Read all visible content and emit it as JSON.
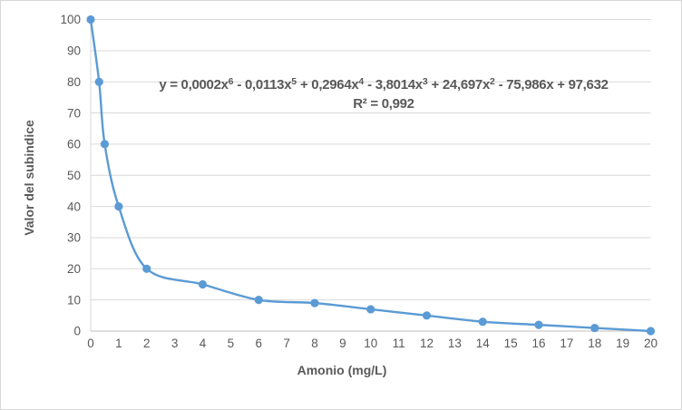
{
  "chart_data": {
    "type": "line",
    "title": "",
    "xlabel": "Amonio (mg/L)",
    "ylabel": "Valor del subindice",
    "xlim": [
      0,
      20
    ],
    "ylim": [
      0,
      100
    ],
    "x_ticks": [
      0,
      1,
      2,
      3,
      4,
      5,
      6,
      7,
      8,
      9,
      10,
      11,
      12,
      13,
      14,
      15,
      16,
      17,
      18,
      19,
      20
    ],
    "y_ticks": [
      0,
      10,
      20,
      30,
      40,
      50,
      60,
      70,
      80,
      90,
      100
    ],
    "grid": "horizontal",
    "legend_position": "none",
    "series": [
      {
        "name": "Valor del subindice",
        "marker": "circle",
        "smooth": true,
        "x": [
          0,
          0.3,
          0.5,
          1,
          2,
          4,
          6,
          8,
          10,
          12,
          14,
          16,
          18,
          20
        ],
        "y": [
          100,
          80,
          60,
          40,
          20,
          15,
          10,
          9,
          7,
          5,
          3,
          2,
          1,
          0
        ]
      }
    ],
    "trendline": {
      "type": "polynomial",
      "degree": 6,
      "style": "dotted",
      "equation_text": "y = 0,0002x6 - 0,0113x5 + 0,2964x4 - 3,8014x3 + 24,697x2 - 75,986x + 97,632",
      "equation_segments": [
        {
          "t": "y = 0,0002x",
          "sup": "6"
        },
        {
          "t": " - 0,0113x",
          "sup": "5"
        },
        {
          "t": " + 0,2964x",
          "sup": "4"
        },
        {
          "t": " - 3,8014x",
          "sup": "3"
        },
        {
          "t": " + 24,697x",
          "sup": "2"
        },
        {
          "t": " - 75,986x + 97,632",
          "sup": ""
        }
      ],
      "r_squared_label": "R² = 0,992"
    },
    "colors": {
      "series": "#5b9bd5",
      "trendline": "#5b9bd5",
      "gridline": "#d9d9d9",
      "axis_line": "#bfbfbf",
      "tick_text": "#595959",
      "title_text": "#595959",
      "border": "#d7d7d7"
    }
  }
}
